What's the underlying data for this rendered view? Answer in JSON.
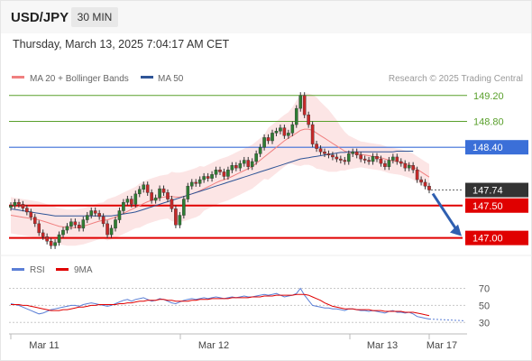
{
  "header": {
    "symbol": "USD/JPY",
    "timeframe": "30 MIN",
    "datetime": "Thursday, March 13, 2025 7:04:17 AM CET"
  },
  "legend": {
    "items": [
      {
        "label": "MA 20 + Bollinger Bands",
        "color": "#f08080"
      },
      {
        "label": "MA 50",
        "color": "#2f5597"
      }
    ],
    "credit": "Research © 2025 Trading Central"
  },
  "chart_data": [
    {
      "type": "candlestick",
      "y_range": [
        146.8,
        149.35
      ],
      "levels": [
        {
          "value": 149.2,
          "label": "149.20",
          "color": "#5aa02c",
          "kind": "resistance"
        },
        {
          "value": 148.8,
          "label": "148.80",
          "color": "#5aa02c",
          "kind": "resistance"
        },
        {
          "value": 148.4,
          "label": "148.40",
          "color": "#3b6fd8",
          "kind": "pivot"
        },
        {
          "value": 147.74,
          "label": "147.74",
          "color": "#333333",
          "kind": "last-price"
        },
        {
          "value": 147.5,
          "label": "147.50",
          "color": "#e00000",
          "kind": "support"
        },
        {
          "value": 147.0,
          "label": "147.00",
          "color": "#e00000",
          "kind": "support"
        }
      ],
      "closes": [
        147.5,
        147.55,
        147.52,
        147.46,
        147.4,
        147.32,
        147.22,
        147.08,
        147.02,
        146.95,
        146.88,
        146.93,
        147.05,
        147.12,
        147.18,
        147.25,
        147.2,
        147.15,
        147.28,
        147.35,
        147.42,
        147.38,
        147.33,
        147.22,
        147.05,
        147.15,
        147.28,
        147.42,
        147.55,
        147.6,
        147.52,
        147.68,
        147.75,
        147.82,
        147.7,
        147.58,
        147.62,
        147.76,
        147.7,
        147.6,
        147.45,
        147.2,
        147.35,
        147.6,
        147.8,
        147.86,
        147.84,
        147.9,
        147.95,
        147.92,
        147.98,
        148.05,
        148.02,
        147.95,
        148.05,
        148.12,
        148.08,
        148.15,
        148.2,
        148.1,
        148.18,
        148.3,
        148.4,
        148.55,
        148.5,
        148.62,
        148.65,
        148.7,
        148.58,
        148.62,
        148.75,
        149.0,
        149.2,
        148.9,
        148.75,
        148.45,
        148.38,
        148.33,
        148.3,
        148.28,
        148.25,
        148.22,
        148.2,
        148.18,
        148.3,
        148.33,
        148.28,
        148.22,
        148.2,
        148.18,
        148.26,
        148.22,
        148.15,
        148.1,
        148.2,
        148.25,
        148.18,
        148.15,
        148.08,
        148.12,
        148.05,
        147.9,
        147.86,
        147.8,
        147.74
      ],
      "ma50": [
        147.45,
        147.44,
        147.43,
        147.42,
        147.41,
        147.4,
        147.39,
        147.38,
        147.37,
        147.36,
        147.35,
        147.34,
        147.34,
        147.34,
        147.34,
        147.34,
        147.34,
        147.34,
        147.34,
        147.34,
        147.34,
        147.34,
        147.34,
        147.34,
        147.34,
        147.34,
        147.35,
        147.36,
        147.37,
        147.38,
        147.39,
        147.4,
        147.42,
        147.44,
        147.46,
        147.48,
        147.5,
        147.52,
        147.54,
        147.56,
        147.58,
        147.6,
        147.62,
        147.64,
        147.66,
        147.68,
        147.7,
        147.72,
        147.74,
        147.76,
        147.78,
        147.8,
        147.82,
        147.84,
        147.86,
        147.88,
        147.9,
        147.92,
        147.94,
        147.96,
        147.98,
        148.0,
        148.02,
        148.04,
        148.06,
        148.08,
        148.1,
        148.12,
        148.14,
        148.16,
        148.18,
        148.2,
        148.22,
        148.23,
        148.24,
        148.25,
        148.26,
        148.27,
        148.28,
        148.29,
        148.3,
        148.31,
        148.32,
        148.32,
        148.33,
        148.33,
        148.33,
        148.33,
        148.33,
        148.33,
        148.33,
        148.33,
        148.33,
        148.33,
        148.33,
        148.33,
        148.34,
        148.34,
        148.34,
        148.34,
        148.34
      ],
      "ma20": [
        147.35,
        147.34,
        147.33,
        147.32,
        147.31,
        147.3,
        147.29,
        147.28,
        147.26,
        147.24,
        147.22,
        147.2,
        147.18,
        147.17,
        147.16,
        147.16,
        147.16,
        147.17,
        147.18,
        147.2,
        147.22,
        147.24,
        147.26,
        147.27,
        147.28,
        147.3,
        147.32,
        147.35,
        147.38,
        147.41,
        147.44,
        147.47,
        147.5,
        147.53,
        147.56,
        147.58,
        147.6,
        147.62,
        147.63,
        147.64,
        147.64,
        147.63,
        147.63,
        147.64,
        147.66,
        147.68,
        147.7,
        147.73,
        147.76,
        147.79,
        147.82,
        147.85,
        147.88,
        147.9,
        147.92,
        147.95,
        147.98,
        148.01,
        148.04,
        148.07,
        148.1,
        148.15,
        148.2,
        148.25,
        148.3,
        148.35,
        148.4,
        148.45,
        148.5,
        148.54,
        148.58,
        148.62,
        148.66,
        148.68,
        148.68,
        148.66,
        148.62,
        148.58,
        148.54,
        148.5,
        148.46,
        148.42,
        148.38,
        148.34,
        148.32,
        148.31,
        148.3,
        148.29,
        148.28,
        148.27,
        148.26,
        148.25,
        148.24,
        148.22,
        148.2,
        148.19,
        148.18,
        148.17,
        148.15,
        148.13,
        148.1,
        148.06,
        148.02,
        147.98,
        147.94
      ],
      "bb_width": [
        0.28,
        0.28,
        0.28,
        0.28,
        0.28,
        0.28,
        0.28,
        0.28,
        0.28,
        0.28,
        0.28,
        0.28,
        0.28,
        0.28,
        0.28,
        0.28,
        0.28,
        0.28,
        0.28,
        0.28,
        0.28,
        0.28,
        0.28,
        0.28,
        0.32,
        0.32,
        0.32,
        0.32,
        0.32,
        0.32,
        0.32,
        0.32,
        0.34,
        0.34,
        0.34,
        0.34,
        0.34,
        0.34,
        0.34,
        0.34,
        0.38,
        0.38,
        0.38,
        0.38,
        0.38,
        0.38,
        0.38,
        0.38,
        0.34,
        0.34,
        0.34,
        0.34,
        0.34,
        0.34,
        0.34,
        0.34,
        0.34,
        0.34,
        0.34,
        0.34,
        0.34,
        0.34,
        0.34,
        0.34,
        0.4,
        0.4,
        0.4,
        0.4,
        0.4,
        0.4,
        0.44,
        0.5,
        0.55,
        0.55,
        0.55,
        0.55,
        0.55,
        0.52,
        0.5,
        0.48,
        0.44,
        0.4,
        0.34,
        0.3,
        0.26,
        0.24,
        0.22,
        0.2,
        0.2,
        0.2,
        0.2,
        0.2,
        0.2,
        0.2,
        0.2,
        0.2,
        0.2,
        0.2,
        0.2,
        0.2,
        0.2,
        0.2,
        0.2,
        0.2,
        0.2
      ],
      "arrow": {
        "from": 147.74,
        "to": 147.0,
        "color": "#2f5fb0"
      }
    },
    {
      "type": "line",
      "y_range": [
        25,
        78
      ],
      "y_ticks": [
        70,
        50,
        30
      ],
      "series": [
        {
          "name": "RSI",
          "color": "#5b7fd6",
          "values": [
            52,
            51,
            50,
            48,
            46,
            44,
            42,
            40,
            41,
            43,
            45,
            46,
            47,
            48,
            49,
            50,
            50,
            49,
            51,
            52,
            53,
            52,
            51,
            50,
            49,
            50,
            52,
            54,
            56,
            57,
            55,
            57,
            58,
            59,
            57,
            55,
            56,
            58,
            57,
            55,
            53,
            52,
            54,
            56,
            57,
            58,
            57,
            58,
            59,
            58,
            59,
            60,
            59,
            58,
            59,
            60,
            59,
            60,
            61,
            60,
            60,
            61,
            62,
            63,
            62,
            63,
            64,
            62,
            60,
            61,
            62,
            64,
            70,
            62,
            56,
            50,
            49,
            48,
            47,
            47,
            46,
            46,
            45,
            44,
            46,
            46,
            45,
            44,
            44,
            43,
            44,
            43,
            42,
            41,
            43,
            44,
            42,
            42,
            41,
            42,
            40,
            37,
            36,
            35,
            34
          ]
        },
        {
          "name": "9MA",
          "color": "#e00000",
          "values": [
            51,
            51,
            51,
            50,
            50,
            49,
            48,
            47,
            46,
            45,
            44,
            44,
            44,
            45,
            45,
            46,
            47,
            48,
            48,
            49,
            50,
            50,
            51,
            51,
            51,
            51,
            51,
            52,
            52,
            53,
            53,
            54,
            55,
            55,
            56,
            56,
            56,
            57,
            57,
            56,
            56,
            55,
            55,
            55,
            55,
            56,
            56,
            57,
            57,
            57,
            58,
            58,
            58,
            58,
            58,
            59,
            59,
            59,
            59,
            59,
            60,
            60,
            60,
            61,
            61,
            61,
            62,
            62,
            62,
            62,
            62,
            63,
            63,
            63,
            62,
            60,
            58,
            56,
            53,
            51,
            49,
            48,
            47,
            46,
            46,
            46,
            45,
            45,
            45,
            45,
            44,
            44,
            44,
            43,
            43,
            43,
            43,
            43,
            42,
            42,
            42,
            41,
            40,
            39,
            38
          ]
        }
      ],
      "threshold": 30
    }
  ],
  "x_axis": {
    "labels": [
      "Mar 11",
      "Mar 12",
      "Mar 13",
      "Mar 17"
    ]
  },
  "rsi_legend": [
    {
      "label": "RSI",
      "color": "#5b7fd6"
    },
    {
      "label": "9MA",
      "color": "#e00000"
    }
  ]
}
